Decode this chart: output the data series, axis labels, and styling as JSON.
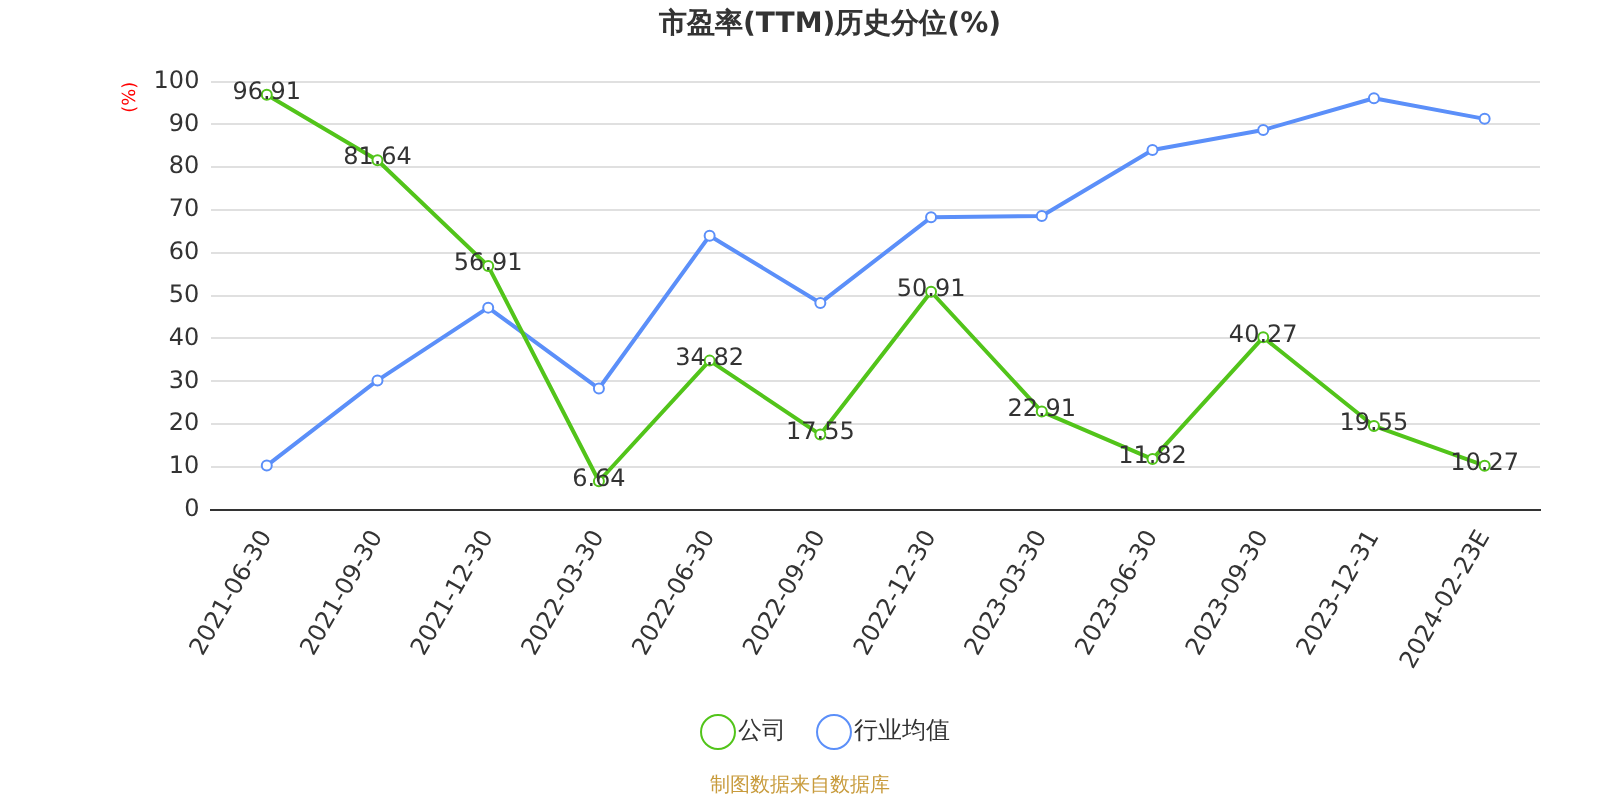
{
  "chart_data": {
    "type": "line",
    "title": "市盈率(TTM)历史分位(%)",
    "ylabel": "(%)",
    "categories": [
      "2021-06-30",
      "2021-09-30",
      "2021-12-30",
      "2022-03-30",
      "2022-06-30",
      "2022-09-30",
      "2022-12-30",
      "2023-03-30",
      "2023-06-30",
      "2023-09-30",
      "2023-12-31",
      "2024-02-23E"
    ],
    "series": [
      {
        "name": "公司",
        "color": "#52c41a",
        "values": [
          96.91,
          81.64,
          56.91,
          6.64,
          34.82,
          17.55,
          50.91,
          22.91,
          11.82,
          40.27,
          19.55,
          10.27
        ],
        "value_labels": [
          "96.91",
          "81.64",
          "56.91",
          "6.64",
          "34.82",
          "17.55",
          "50.91",
          "22.91",
          "11.82",
          "40.27",
          "19.55",
          "10.27"
        ]
      },
      {
        "name": "行业均值",
        "color": "#5b8ff9",
        "values": [
          10.3,
          30.2,
          47.2,
          28.3,
          64,
          48.3,
          68.3,
          68.6,
          84,
          88.7,
          96.1,
          91.3
        ]
      }
    ],
    "ylim": [
      0,
      100
    ],
    "yticks": [
      0,
      10,
      20,
      30,
      40,
      50,
      60,
      70,
      80,
      90,
      100
    ],
    "grid": "y",
    "legend": "bottom",
    "marker": "circle",
    "line_style": "solid",
    "annotations": [
      "制图数据来自数据库"
    ]
  }
}
